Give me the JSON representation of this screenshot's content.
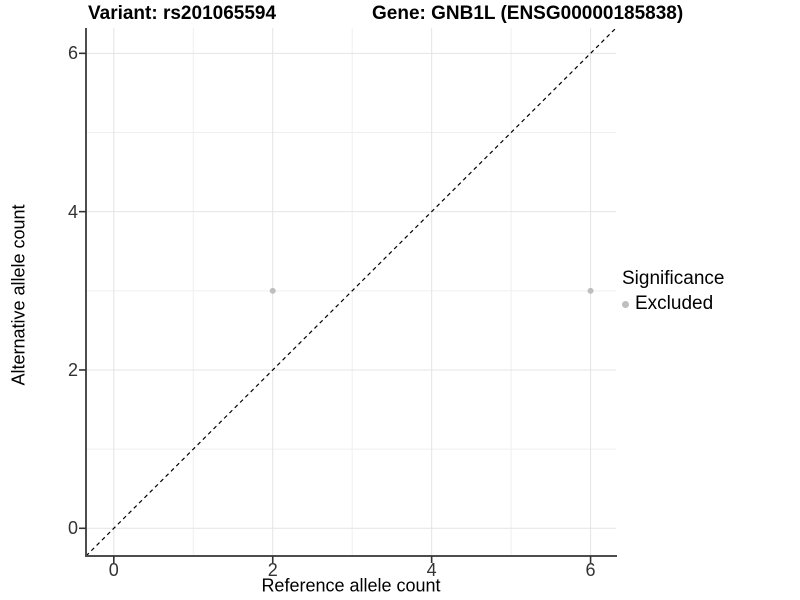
{
  "titles": {
    "variant": "Variant: rs201065594",
    "gene": "Gene: GNB1L (ENSG00000185838)"
  },
  "legend": {
    "title": "Significance",
    "items": [
      {
        "label": "Excluded",
        "color": "#bebebe"
      }
    ]
  },
  "colors": {
    "axis_line": "#4d4d4d",
    "tick_mark": "#333333",
    "grid_major": "#e4e4e4",
    "grid_minor": "#efefef",
    "identity_line": "#000000",
    "point": "#bebebe"
  },
  "chart_data": {
    "type": "scatter",
    "title_left": "Variant: rs201065594",
    "title_right": "Gene: GNB1L (ENSG00000185838)",
    "xlabel": "Reference allele count",
    "ylabel": "Alternative allele count",
    "x_ticks": [
      0,
      2,
      4,
      6
    ],
    "y_ticks": [
      0,
      2,
      4,
      6
    ],
    "x_minor_ticks": [
      1,
      3,
      5
    ],
    "y_minor_ticks": [
      1,
      3,
      5
    ],
    "xlim": [
      -0.35,
      6.32
    ],
    "ylim": [
      -0.35,
      6.32
    ],
    "grid": true,
    "legend_position": "right",
    "identity_line": {
      "equation": "y = x",
      "style": "dashed",
      "color": "#000000"
    },
    "series": [
      {
        "name": "Excluded",
        "color": "#bebebe",
        "points": [
          {
            "x": 2,
            "y": 3
          },
          {
            "x": 6,
            "y": 3
          }
        ]
      }
    ]
  }
}
